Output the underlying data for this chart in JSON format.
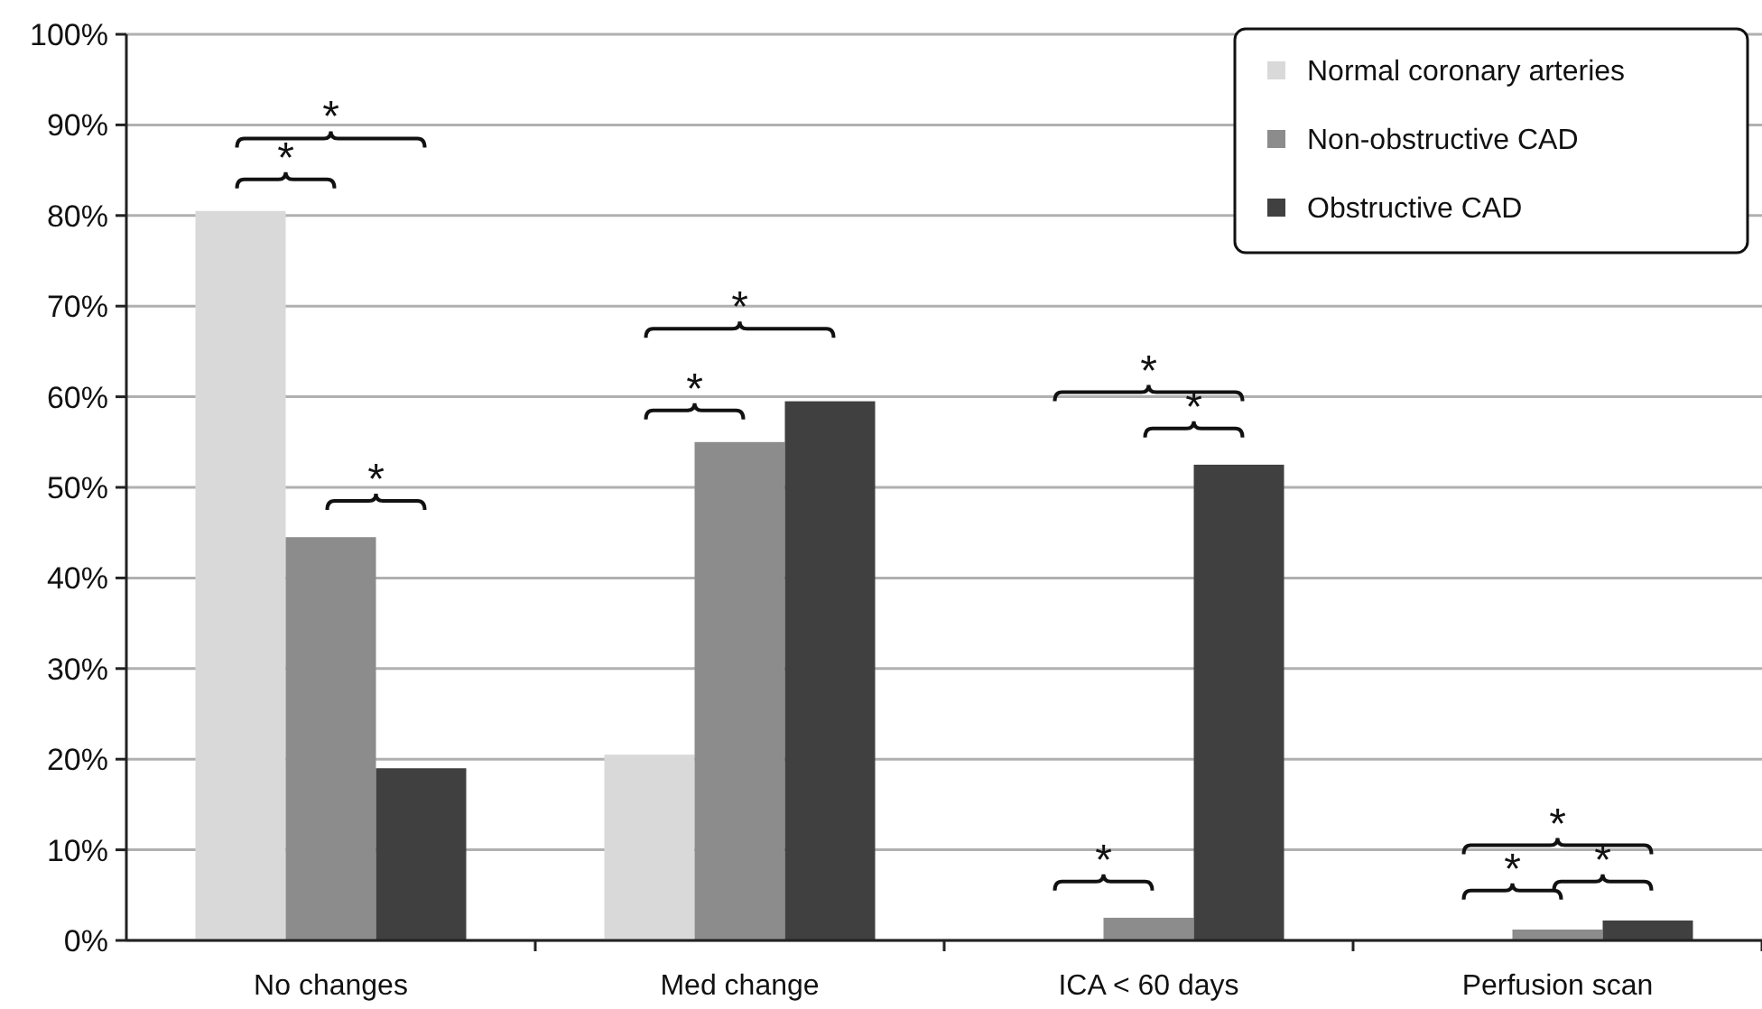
{
  "chart_data": {
    "type": "bar",
    "categories": [
      "No changes",
      "Med change",
      "ICA < 60 days",
      "Perfusion scan"
    ],
    "series": [
      {
        "name": "Normal coronary arteries",
        "color": "#d9d9d9",
        "values": [
          80.5,
          20.5,
          0,
          0
        ]
      },
      {
        "name": "Non-obstructive CAD",
        "color": "#8c8c8c",
        "values": [
          44.5,
          55,
          2.5,
          1.2
        ]
      },
      {
        "name": "Obstructive CAD",
        "color": "#404040",
        "values": [
          19,
          59.5,
          52.5,
          2.2
        ]
      }
    ],
    "ylim": [
      0,
      100
    ],
    "yticks": [
      {
        "value": 0,
        "label": "0%"
      },
      {
        "value": 10,
        "label": "10%"
      },
      {
        "value": 20,
        "label": "20%"
      },
      {
        "value": 30,
        "label": "30%"
      },
      {
        "value": 40,
        "label": "40%"
      },
      {
        "value": 50,
        "label": "50%"
      },
      {
        "value": 60,
        "label": "60%"
      },
      {
        "value": 70,
        "label": "70%"
      },
      {
        "value": 80,
        "label": "80%"
      },
      {
        "value": 90,
        "label": "90%"
      },
      {
        "value": 100,
        "label": "100%"
      }
    ],
    "grid": "y",
    "legend": "top right",
    "annotations": [
      "*",
      "*",
      "*",
      "*",
      "*",
      "*",
      "*",
      "*",
      "*",
      "*",
      "*"
    ]
  }
}
